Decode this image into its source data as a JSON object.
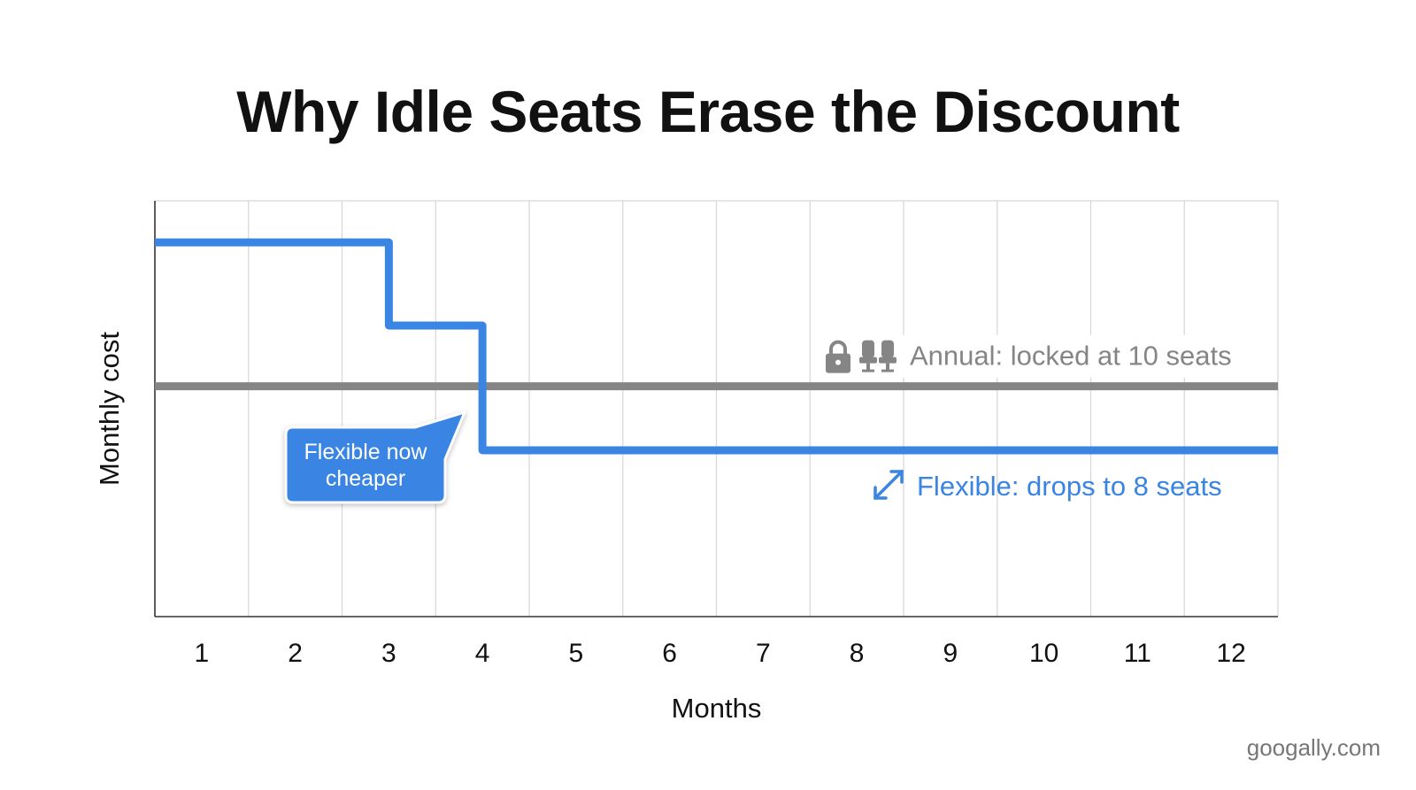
{
  "title": "Why Idle Seats Erase the Discount",
  "watermark": "googally.com",
  "colors": {
    "annual": "#858585",
    "flexible": "#3a84e3",
    "grid": "#d6d6d6",
    "axis": "#333333",
    "callout": "#3a84e3"
  },
  "chart_data": {
    "type": "line",
    "xlabel": "Months",
    "ylabel": "Monthly cost",
    "categories": [
      "1",
      "2",
      "3",
      "4",
      "5",
      "6",
      "7",
      "8",
      "9",
      "10",
      "11",
      "12"
    ],
    "ylim": [
      0,
      100
    ],
    "grid": true,
    "step": true,
    "series": [
      {
        "name": "Annual: locked at 10 seats",
        "color": "#858585",
        "icons": [
          "lock-icon",
          "seats-icon"
        ],
        "steps": [
          {
            "from": 0.5,
            "to": 12.5,
            "y": 55.4
          }
        ]
      },
      {
        "name": "Flexible: drops to 8 seats",
        "color": "#3a84e3",
        "icons": [
          "resize-arrows-icon"
        ],
        "steps": [
          {
            "from": 0.5,
            "to": 3.0,
            "y": 90.0
          },
          {
            "from": 3.0,
            "to": 4.0,
            "y": 70.0
          },
          {
            "from": 4.0,
            "to": 12.5,
            "y": 40.0
          }
        ]
      }
    ],
    "annotations": [
      {
        "text_lines": [
          "Flexible now",
          "cheaper"
        ],
        "points_to_x": 4.0,
        "points_to_y": 50.0
      }
    ]
  }
}
